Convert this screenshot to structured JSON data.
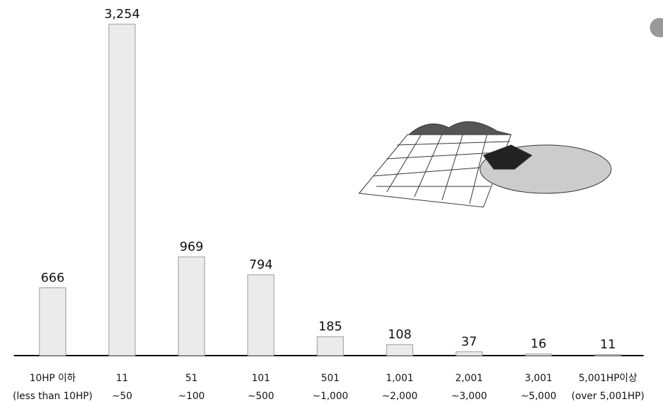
{
  "chart_data": {
    "type": "bar",
    "categories": [
      [
        "10HP 이하",
        "(less than 10HP)"
      ],
      [
        "11",
        "~50"
      ],
      [
        "51",
        "~100"
      ],
      [
        "101",
        "~500"
      ],
      [
        "501",
        "~1,000"
      ],
      [
        "1,001",
        "~2,000"
      ],
      [
        "2,001",
        "~3,000"
      ],
      [
        "3,001",
        "~5,000"
      ],
      [
        "5,001HP이상",
        "(over 5,001HP)"
      ]
    ],
    "values": [
      666,
      3254,
      969,
      794,
      185,
      108,
      37,
      16,
      11
    ],
    "value_labels": [
      "666",
      "3,254",
      "969",
      "794",
      "185",
      "108",
      "37",
      "16",
      "11"
    ],
    "color": "#ebebeb"
  }
}
